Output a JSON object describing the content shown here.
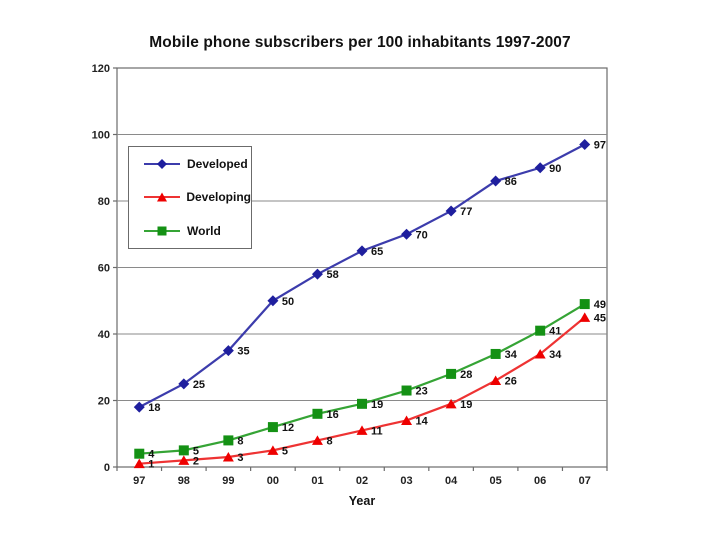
{
  "title": "Mobile phone subscribers per 100 inhabitants 1997-2007",
  "chart_data": {
    "type": "line",
    "title": "Mobile phone subscribers per 100 inhabitants 1997-2007",
    "xlabel": "Year",
    "ylabel": "",
    "ylim": [
      0,
      120
    ],
    "yticks": [
      0,
      20,
      40,
      60,
      80,
      100,
      120
    ],
    "grid": "horizontal",
    "legend_position": "inside-upper-left",
    "categories": [
      "97",
      "98",
      "99",
      "00",
      "01",
      "02",
      "03",
      "04",
      "05",
      "06",
      "07"
    ],
    "series": [
      {
        "name": "Developed",
        "marker": "diamond",
        "marker_color": "#1f1f9e",
        "line_color": "#3c3cac",
        "values": [
          18,
          25,
          35,
          50,
          58,
          65,
          70,
          77,
          86,
          90,
          97
        ]
      },
      {
        "name": "Developing",
        "marker": "triangle",
        "marker_color": "#ee0000",
        "line_color": "#ee3333",
        "values": [
          1,
          2,
          3,
          5,
          8,
          11,
          14,
          19,
          26,
          34,
          45
        ]
      },
      {
        "name": "World",
        "marker": "square",
        "marker_color": "#149114",
        "line_color": "#35a435",
        "values": [
          4,
          5,
          8,
          12,
          16,
          19,
          23,
          28,
          34,
          41,
          49
        ]
      }
    ],
    "colors": {
      "grid": "#8a8a8a",
      "frame": "#6b6b6b",
      "tick_text": "#222222",
      "data_label": "#111111"
    }
  }
}
